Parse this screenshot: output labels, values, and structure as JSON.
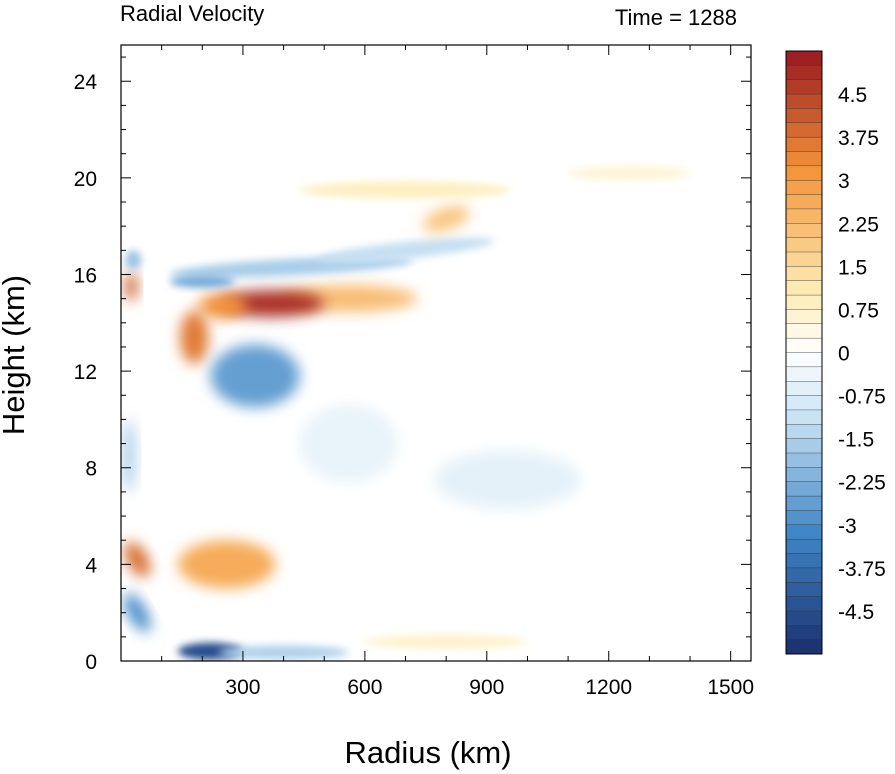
{
  "chart_data": {
    "type": "heatmap",
    "title": "Radial Velocity",
    "subtitle": "Time = 1288",
    "xlabel": "Radius (km)",
    "ylabel": "Height (km)",
    "xlim": [
      0,
      1550
    ],
    "ylim": [
      0,
      25.5
    ],
    "x_ticks": [
      300,
      600,
      900,
      1200,
      1500
    ],
    "y_ticks": [
      0,
      4,
      8,
      12,
      16,
      20,
      24
    ],
    "colorbar": {
      "min": -5.25,
      "max": 5.25,
      "step": 0.25,
      "labels": [
        "4.5",
        "3.75",
        "3",
        "2.25",
        "1.5",
        "0.75",
        "0",
        "-0.75",
        "-1.5",
        "-2.25",
        "-3",
        "-3.75",
        "-4.5"
      ],
      "label_values": [
        4.5,
        3.75,
        3,
        2.25,
        1.5,
        0.75,
        0,
        -0.75,
        -1.5,
        -2.25,
        -3,
        -3.75,
        -4.5
      ],
      "colors": {
        "neg_strong": "#1b2f6e",
        "neg_mid": "#3f86c6",
        "neg_light": "#cfe6f5",
        "neutral": "#ffffff",
        "pos_light": "#fdecb6",
        "pos_mid": "#f4953a",
        "pos_strong": "#96181f"
      }
    },
    "features": [
      {
        "name": "upper outflow jet",
        "x": 370,
        "y": 14.8,
        "value": 4.8
      },
      {
        "name": "outflow jet tail",
        "x": 560,
        "y": 15.0,
        "value": 2.8
      },
      {
        "name": "outflow jet core",
        "x": 180,
        "y": 13.4,
        "value": 3.6
      },
      {
        "name": "upper inflow band",
        "x": 420,
        "y": 16.3,
        "value": -1.6
      },
      {
        "name": "upper inflow near eye",
        "x": 200,
        "y": 15.7,
        "value": -2.4
      },
      {
        "name": "mid-level inflow",
        "x": 330,
        "y": 11.8,
        "value": -2.6
      },
      {
        "name": "high outflow streak",
        "x": 800,
        "y": 18.3,
        "value": 2.0
      },
      {
        "name": "lower outflow",
        "x": 260,
        "y": 4.0,
        "value": 2.6
      },
      {
        "name": "boundary layer inflow",
        "x": 220,
        "y": 0.4,
        "value": -4.5
      },
      {
        "name": "eyewall outflow",
        "x": 40,
        "y": 4.2,
        "value": 3.8
      },
      {
        "name": "eyewall inflow",
        "x": 40,
        "y": 2.0,
        "value": -3.0
      },
      {
        "name": "broad mid inflow",
        "x": 950,
        "y": 7.5,
        "value": -0.7
      }
    ]
  }
}
